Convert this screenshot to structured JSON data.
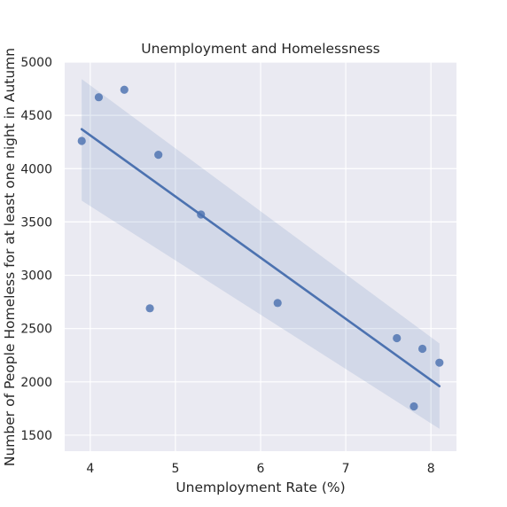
{
  "chart_data": {
    "type": "scatter",
    "title": "Unemployment and Homelessness",
    "xlabel": "Unemployment Rate (%)",
    "ylabel": "Number of People Homeless for at least one night in Autumn",
    "xlim": [
      3.7,
      8.3
    ],
    "ylim": [
      1350,
      5000
    ],
    "xticks": [
      4,
      5,
      6,
      7,
      8
    ],
    "yticks": [
      1500,
      2000,
      2500,
      3000,
      3500,
      4000,
      4500,
      5000
    ],
    "grid": true,
    "points": [
      {
        "x": 3.9,
        "y": 4260
      },
      {
        "x": 4.1,
        "y": 4670
      },
      {
        "x": 4.4,
        "y": 4740
      },
      {
        "x": 4.7,
        "y": 2690
      },
      {
        "x": 4.8,
        "y": 4130
      },
      {
        "x": 5.3,
        "y": 3570
      },
      {
        "x": 6.2,
        "y": 2740
      },
      {
        "x": 7.6,
        "y": 2410
      },
      {
        "x": 7.8,
        "y": 1770
      },
      {
        "x": 7.9,
        "y": 2310
      },
      {
        "x": 8.1,
        "y": 2180
      }
    ],
    "regression": {
      "x": [
        3.9,
        8.1
      ],
      "y": [
        4370,
        1960
      ],
      "ci_upper": [
        4840,
        2360
      ],
      "ci_lower": [
        3700,
        1560
      ]
    },
    "colors": {
      "background": "#eaeaf2",
      "grid": "#ffffff",
      "points": "#4c72b0",
      "line": "#4c72b0",
      "band": "#4c72b0"
    }
  }
}
